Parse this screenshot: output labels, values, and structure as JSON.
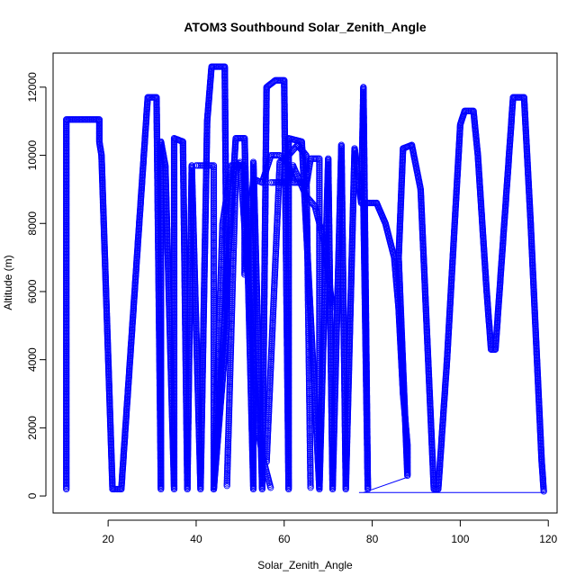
{
  "chart_data": {
    "type": "scatter",
    "title": "ATOM3 Southbound Solar_Zenith_Angle",
    "xlabel": "Solar_Zenith_Angle",
    "ylabel": "Altitude (m)",
    "xlim": [
      7.5,
      122
    ],
    "ylim": [
      -500,
      13000
    ],
    "x_ticks": [
      20,
      40,
      60,
      80,
      100,
      120
    ],
    "y_ticks": [
      0,
      2000,
      4000,
      6000,
      8000,
      10000,
      12000
    ],
    "marker": "open-circle",
    "grid": false,
    "legend": "none",
    "series_color": "#0000ff",
    "trajectory": [
      [
        10.5,
        200
      ],
      [
        10.5,
        11050
      ],
      [
        18,
        11050
      ],
      [
        18,
        10400
      ],
      [
        18.5,
        10000
      ],
      [
        21,
        200
      ],
      [
        23,
        200
      ],
      [
        29,
        11700
      ],
      [
        31,
        11700
      ],
      [
        32,
        200
      ],
      [
        32,
        10400
      ],
      [
        33,
        9700
      ],
      [
        35,
        200
      ],
      [
        35,
        10500
      ],
      [
        37,
        10400
      ],
      [
        38,
        200
      ],
      [
        39,
        9700
      ],
      [
        41,
        200
      ],
      [
        42.5,
        11000
      ],
      [
        43.5,
        12600
      ],
      [
        46.5,
        12600
      ],
      [
        47,
        5000
      ],
      [
        44,
        200
      ],
      [
        49,
        10500
      ],
      [
        51,
        10500
      ],
      [
        53,
        200
      ],
      [
        53,
        9800
      ],
      [
        55,
        200
      ],
      [
        56,
        12000
      ],
      [
        57,
        12100
      ],
      [
        58,
        12200
      ],
      [
        60,
        12200
      ],
      [
        61,
        200
      ],
      [
        61,
        10500
      ],
      [
        64,
        10400
      ],
      [
        68,
        200
      ],
      [
        70,
        9900
      ],
      [
        71,
        200
      ],
      [
        73,
        10300
      ],
      [
        74,
        200
      ],
      [
        76,
        10200
      ],
      [
        77.5,
        8600
      ],
      [
        78,
        12000
      ],
      [
        79,
        200
      ],
      [
        78,
        8600
      ],
      [
        81,
        8600
      ],
      [
        83,
        8000
      ],
      [
        85,
        7000
      ],
      [
        86,
        5500
      ],
      [
        87,
        3000
      ],
      [
        88,
        1500
      ],
      [
        88,
        600
      ],
      [
        86,
        7000
      ],
      [
        87,
        10200
      ],
      [
        89,
        10300
      ],
      [
        91,
        9000
      ],
      [
        94,
        200
      ],
      [
        95,
        200
      ],
      [
        97,
        4000
      ],
      [
        100,
        10900
      ],
      [
        101,
        11300
      ],
      [
        103,
        11300
      ],
      [
        104,
        10000
      ],
      [
        106,
        6000
      ],
      [
        107,
        4300
      ],
      [
        108,
        4300
      ],
      [
        110,
        8000
      ],
      [
        112,
        11700
      ],
      [
        114.5,
        11700
      ],
      [
        116,
        8000
      ],
      [
        118.5,
        1000
      ],
      [
        119,
        100
      ]
    ],
    "overlay_segments": [
      [
        [
          40,
          9700
        ],
        [
          44,
          9700
        ],
        [
          44,
          200
        ],
        [
          46,
          8000
        ],
        [
          48,
          9700
        ],
        [
          51,
          9700
        ],
        [
          51,
          6500
        ],
        [
          53,
          9300
        ],
        [
          55,
          9200
        ]
      ],
      [
        [
          55,
          9200
        ],
        [
          57,
          10000
        ],
        [
          59,
          10000
        ],
        [
          61,
          9700
        ],
        [
          62,
          9200
        ],
        [
          64,
          9200
        ],
        [
          65,
          9100
        ],
        [
          66,
          9900
        ],
        [
          68,
          9900
        ],
        [
          68,
          200
        ]
      ],
      [
        [
          57,
          9200
        ],
        [
          61,
          9200
        ],
        [
          62,
          9700
        ],
        [
          65,
          8800
        ],
        [
          67,
          8500
        ],
        [
          69,
          7500
        ],
        [
          70,
          6500
        ],
        [
          71,
          5500
        ]
      ],
      [
        [
          56,
          1000
        ],
        [
          59,
          9800
        ],
        [
          61,
          10000
        ],
        [
          63,
          10300
        ],
        [
          65,
          10000
        ],
        [
          66,
          200
        ]
      ],
      [
        [
          47,
          300
        ],
        [
          49,
          9500
        ],
        [
          50,
          9800
        ],
        [
          52,
          6000
        ],
        [
          54,
          2000
        ],
        [
          55,
          1200
        ],
        [
          57,
          200
        ]
      ]
    ],
    "line_segment": [
      [
        77,
        100
      ],
      [
        119,
        100
      ]
    ],
    "line_segment_2": [
      [
        78,
        100
      ],
      [
        88,
        550
      ]
    ]
  }
}
